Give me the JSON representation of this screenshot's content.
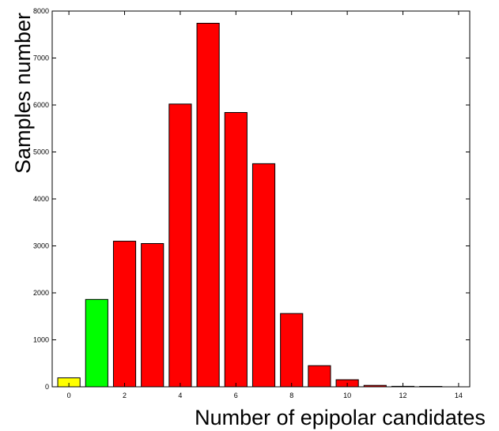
{
  "chart_data": {
    "type": "bar",
    "title": "",
    "xlabel": "Number of epipolar candidates",
    "ylabel": "Samples number",
    "x": [
      0,
      1,
      2,
      3,
      4,
      5,
      6,
      7,
      8,
      9,
      10,
      11,
      12,
      13
    ],
    "values": [
      190,
      1860,
      3100,
      3050,
      6020,
      7740,
      5840,
      4750,
      1560,
      450,
      150,
      30,
      10,
      8
    ],
    "bar_colors": [
      "#ffff00",
      "#00ff00",
      "#ff0000",
      "#ff0000",
      "#ff0000",
      "#ff0000",
      "#ff0000",
      "#ff0000",
      "#ff0000",
      "#ff0000",
      "#ff0000",
      "#ff0000",
      "#ff0000",
      "#ff0000"
    ],
    "xlim": [
      -0.6,
      14.4
    ],
    "ylim": [
      0,
      8000
    ],
    "xticks": [
      0,
      2,
      4,
      6,
      8,
      10,
      12,
      14
    ],
    "yticks": [
      0,
      1000,
      2000,
      3000,
      4000,
      5000,
      6000,
      7000,
      8000
    ],
    "grid": false,
    "legend": "none"
  }
}
